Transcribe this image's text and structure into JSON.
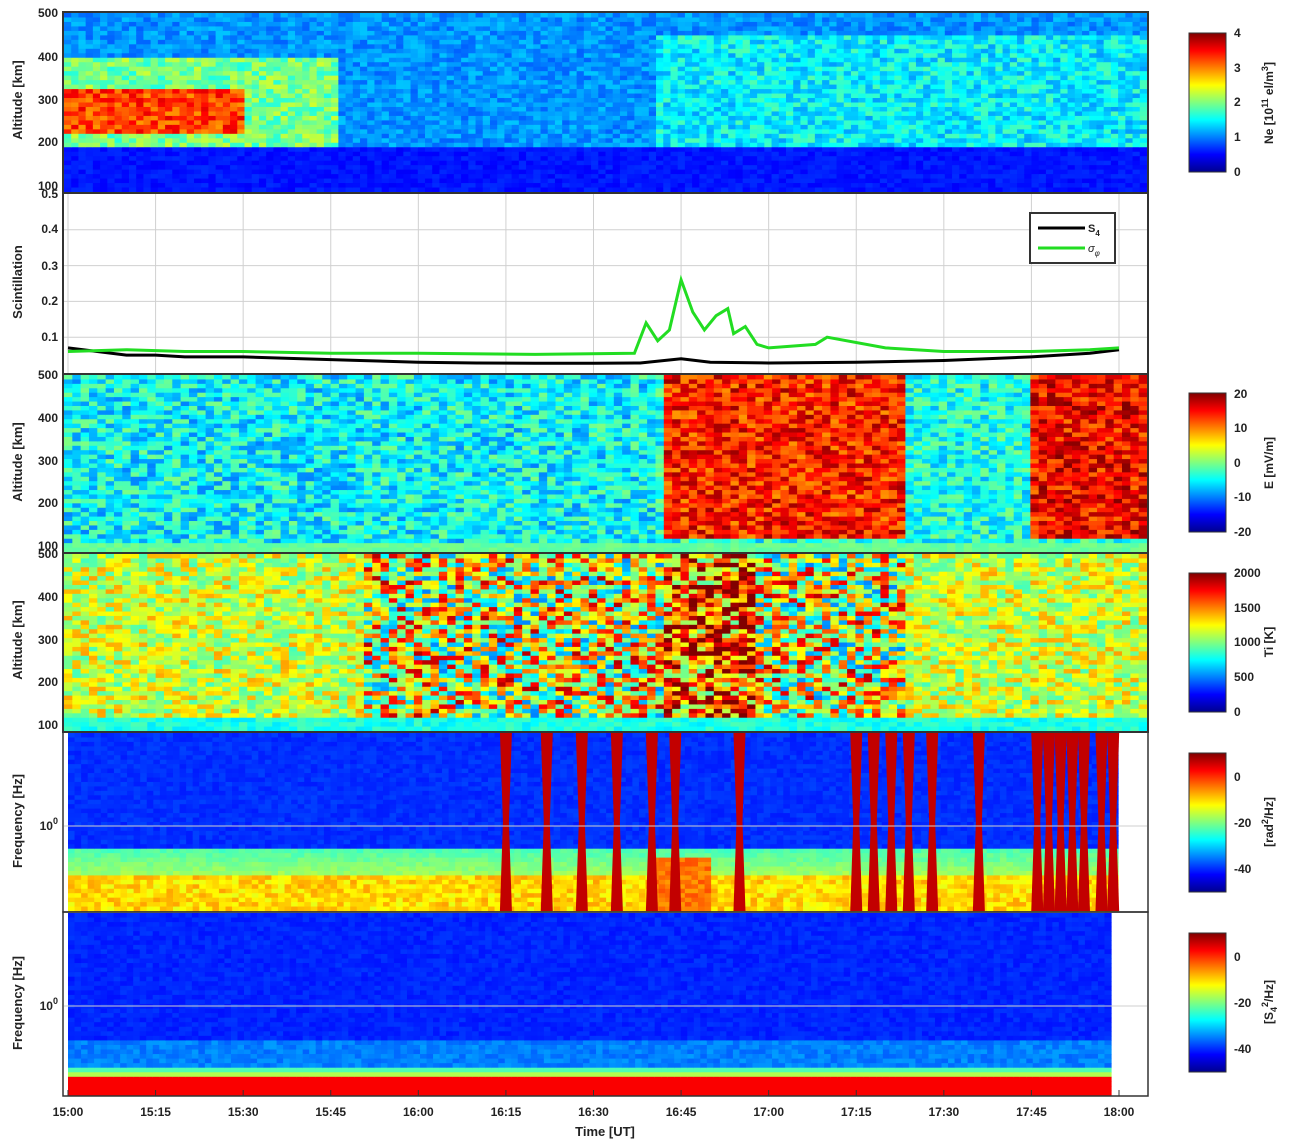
{
  "chart_data": [
    {
      "panel": "ne",
      "type": "heatmap",
      "ylabel": "Altitude [km]",
      "ylim": [
        100,
        500
      ],
      "yticks": [
        "100",
        "200",
        "300",
        "400",
        "500"
      ],
      "colorbar": {
        "label": "Ne [10¹¹ el/m³]",
        "ticks": [
          "0",
          "1",
          "2",
          "3",
          "4"
        ],
        "range": [
          0,
          4
        ]
      },
      "features": [
        {
          "t": [
            "15:00",
            "15:30"
          ],
          "alt": [
            230,
            330
          ],
          "value": 3.3
        },
        {
          "t": [
            "15:00",
            "15:45"
          ],
          "alt": [
            200,
            400
          ],
          "value": 2.0
        },
        {
          "t": [
            "16:38",
            "18:00"
          ],
          "alt": [
            200,
            450
          ],
          "value": 1.5
        }
      ]
    },
    {
      "panel": "scintillation",
      "type": "line",
      "ylabel": "Scintillation",
      "ylim": [
        0,
        0.5
      ],
      "yticks": [
        "0.1",
        "0.2",
        "0.3",
        "0.4",
        "0.5"
      ],
      "legend": {
        "position": "top-right"
      },
      "series": [
        {
          "name": "S4",
          "color": "#000000",
          "x": [
            "15:00",
            "15:05",
            "15:10",
            "15:15",
            "15:20",
            "15:30",
            "15:40",
            "15:50",
            "16:00",
            "16:10",
            "16:20",
            "16:30",
            "16:38",
            "16:45",
            "16:50",
            "17:00",
            "17:15",
            "17:30",
            "17:45",
            "17:55",
            "18:00"
          ],
          "values": [
            0.07,
            0.06,
            0.05,
            0.05,
            0.045,
            0.045,
            0.04,
            0.035,
            0.03,
            0.028,
            0.027,
            0.027,
            0.028,
            0.04,
            0.03,
            0.028,
            0.03,
            0.035,
            0.045,
            0.055,
            0.065
          ]
        },
        {
          "name": "σφ",
          "color": "#22dd22",
          "x": [
            "15:00",
            "15:10",
            "15:20",
            "15:30",
            "15:45",
            "16:00",
            "16:20",
            "16:37",
            "16:39",
            "16:41",
            "16:43",
            "16:45",
            "16:47",
            "16:49",
            "16:51",
            "16:53",
            "16:54",
            "16:56",
            "16:58",
            "17:00",
            "17:08",
            "17:10",
            "17:20",
            "17:30",
            "17:45",
            "17:55",
            "18:00"
          ],
          "values": [
            0.06,
            0.065,
            0.06,
            0.06,
            0.055,
            0.055,
            0.052,
            0.055,
            0.14,
            0.09,
            0.12,
            0.26,
            0.17,
            0.12,
            0.16,
            0.18,
            0.11,
            0.13,
            0.08,
            0.07,
            0.08,
            0.1,
            0.07,
            0.06,
            0.06,
            0.065,
            0.07
          ]
        }
      ]
    },
    {
      "panel": "e",
      "type": "heatmap",
      "ylabel": "Altitude [km]",
      "ylim": [
        100,
        500
      ],
      "yticks": [
        "100",
        "200",
        "300",
        "400",
        "500"
      ],
      "colorbar": {
        "label": "E [mV/m]",
        "ticks": [
          "-20",
          "-10",
          "0",
          "10",
          "20"
        ],
        "range": [
          -20,
          20
        ]
      },
      "features": [
        {
          "t": [
            "15:00",
            "16:38"
          ],
          "alt": [
            120,
            500
          ],
          "value": -5
        },
        {
          "t": [
            "16:40",
            "17:20"
          ],
          "alt": [
            130,
            500
          ],
          "value": 14
        },
        {
          "t": [
            "17:40",
            "18:00"
          ],
          "alt": [
            130,
            500
          ],
          "value": 15
        }
      ]
    },
    {
      "panel": "ti",
      "type": "heatmap",
      "ylabel": "Altitude [km]",
      "ylim": [
        100,
        500
      ],
      "yticks": [
        "100",
        "200",
        "300",
        "400",
        "500"
      ],
      "colorbar": {
        "label": "Ti [K]",
        "ticks": [
          "0",
          "500",
          "1000",
          "1500",
          "2000"
        ],
        "range": [
          0,
          2000
        ]
      },
      "features": [
        {
          "t": [
            "15:50",
            "17:20"
          ],
          "alt": [
            130,
            500
          ],
          "value": 1600
        },
        {
          "t": [
            "16:40",
            "16:55"
          ],
          "alt": [
            130,
            500
          ],
          "value": 2000
        }
      ]
    },
    {
      "panel": "phase_spectrum",
      "type": "heatmap",
      "ylabel": "Frequency [Hz]",
      "yticks": [
        "10⁰"
      ],
      "colorbar": {
        "label": "[rad²/Hz]",
        "ticks": [
          "0",
          "-20",
          "-40"
        ],
        "range": [
          -50,
          10
        ]
      },
      "saturated_bursts": [
        "16:15",
        "16:22",
        "16:28",
        "16:34",
        "16:40",
        "16:44",
        "16:55",
        "17:15",
        "17:18",
        "17:21",
        "17:24",
        "17:28",
        "17:36",
        "17:46",
        "17:48",
        "17:50",
        "17:52",
        "17:54",
        "17:57",
        "17:59"
      ]
    },
    {
      "panel": "amplitude_spectrum",
      "type": "heatmap",
      "ylabel": "Frequency [Hz]",
      "yticks": [
        "10⁰"
      ],
      "colorbar": {
        "label": "[S4²/Hz]",
        "ticks": [
          "0",
          "-20",
          "-40"
        ],
        "range": [
          -50,
          10
        ]
      }
    }
  ],
  "xaxis": {
    "label": "Time [UT]",
    "ticks": [
      "15:00",
      "15:15",
      "15:30",
      "15:45",
      "16:00",
      "16:15",
      "16:30",
      "16:45",
      "17:00",
      "17:15",
      "17:30",
      "17:45",
      "18:00"
    ]
  },
  "legend": {
    "s4_label": "S",
    "s4_sub": "4",
    "sigma_label": "σ",
    "sigma_sub": "φ"
  },
  "labels": {
    "ne_colorbar_main": "Ne [10",
    "ne_colorbar_exp": "11",
    "ne_colorbar_mid": " el/m",
    "ne_colorbar_exp2": "3",
    "ne_colorbar_end": "]",
    "phase_cb_main": "[rad",
    "phase_cb_exp": "2",
    "phase_cb_end": "/Hz]",
    "amp_cb_main": "[S",
    "amp_cb_sub": "4",
    "amp_cb_exp": "2",
    "amp_cb_end": "/Hz]",
    "freq_tick_base": "10",
    "freq_tick_exp": "0"
  }
}
